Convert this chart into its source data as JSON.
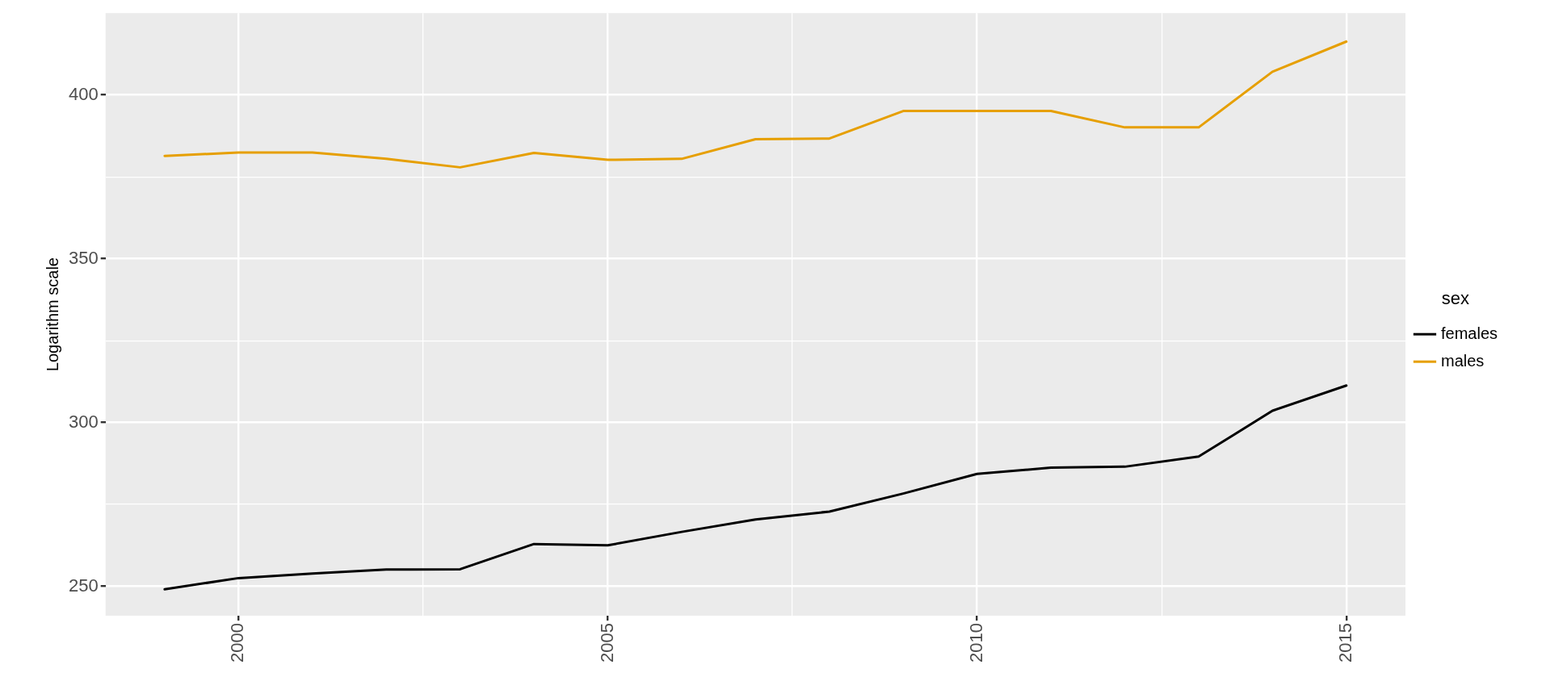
{
  "chart_data": {
    "type": "line",
    "ylabel": "Logarithm scale",
    "legend_title": "sex",
    "legend": "right",
    "grid": true,
    "line_style": "solid",
    "x": [
      1999,
      2000,
      2001,
      2002,
      2003,
      2004,
      2005,
      2006,
      2007,
      2008,
      2009,
      2010,
      2011,
      2012,
      2013,
      2014,
      2015
    ],
    "xlim": [
      1998.2,
      2015.8
    ],
    "xticks": [
      2000,
      {
        "value": 2002.5,
        "label": null
      },
      2005,
      {
        "value": 2007.5,
        "label": null
      },
      2010,
      {
        "value": 2012.5,
        "label": null
      },
      2015
    ],
    "ylim": [
      241,
      425
    ],
    "yticks": [
      250,
      {
        "value": 275,
        "label": null
      },
      300,
      {
        "value": 325,
        "label": null
      },
      350,
      {
        "value": 375,
        "label": null
      },
      400
    ],
    "series": [
      {
        "name": "females",
        "color": "#000000",
        "values": [
          249.1,
          252.5,
          253.9,
          255.1,
          255.2,
          262.9,
          262.5,
          266.6,
          270.4,
          272.8,
          278.3,
          284.3,
          286.2,
          286.5,
          289.6,
          303.6,
          311.3
        ]
      },
      {
        "name": "males",
        "color": "#e69f00",
        "values": [
          381.4,
          382.4,
          382.4,
          380.5,
          377.9,
          382.3,
          380.2,
          380.5,
          386.5,
          386.7,
          395.1,
          395.1,
          395.1,
          390.1,
          390.1,
          407.1,
          416.3
        ]
      }
    ]
  }
}
